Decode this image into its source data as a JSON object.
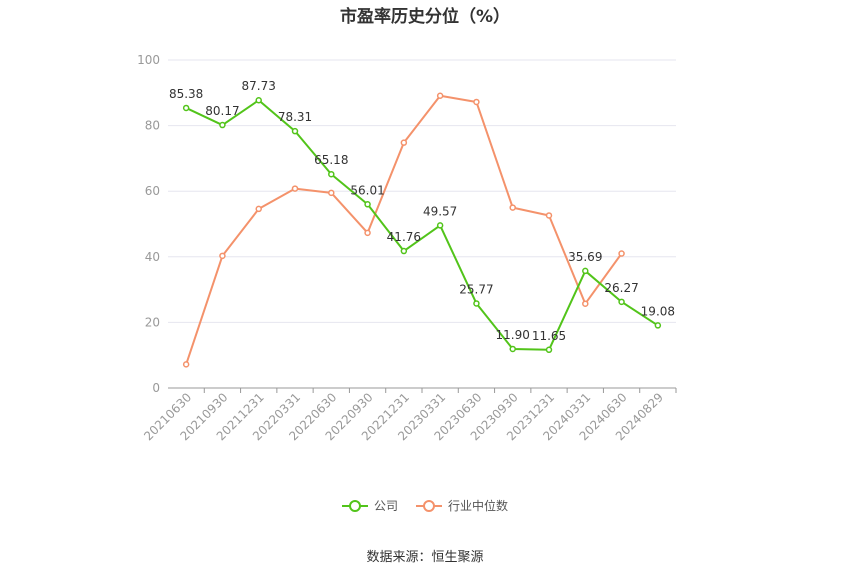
{
  "title": "市盈率历史分位（%）",
  "source": "数据来源：恒生聚源",
  "chart_data": {
    "type": "line",
    "x": [
      "20210630",
      "20210930",
      "20211231",
      "20220331",
      "20220630",
      "20220930",
      "20221231",
      "20230331",
      "20230630",
      "20230930",
      "20231231",
      "20240331",
      "20240630",
      "20240829"
    ],
    "ylim": [
      0,
      100
    ],
    "yticks": [
      0,
      20,
      40,
      60,
      80,
      100
    ],
    "grid": true,
    "legend_position": "bottom",
    "series": [
      {
        "name": "公司",
        "color": "#52c41a",
        "show_labels": true,
        "values": [
          85.38,
          80.17,
          87.73,
          78.31,
          65.18,
          56.01,
          41.76,
          49.57,
          25.77,
          11.9,
          11.65,
          35.69,
          26.27,
          19.08
        ],
        "labels": [
          "85.38",
          "80.17",
          "87.73",
          "78.31",
          "65.18",
          "56.01",
          "41.76",
          "49.57",
          "25.77",
          "11.90",
          "11.65",
          "35.69",
          "26.27",
          "19.08"
        ]
      },
      {
        "name": "行业中位数",
        "color": "#f4926b",
        "show_labels": false,
        "values": [
          7.2,
          40.3,
          54.6,
          60.8,
          59.5,
          47.3,
          74.8,
          89.1,
          87.2,
          55.0,
          52.6,
          25.7,
          41.0,
          null
        ]
      }
    ]
  }
}
